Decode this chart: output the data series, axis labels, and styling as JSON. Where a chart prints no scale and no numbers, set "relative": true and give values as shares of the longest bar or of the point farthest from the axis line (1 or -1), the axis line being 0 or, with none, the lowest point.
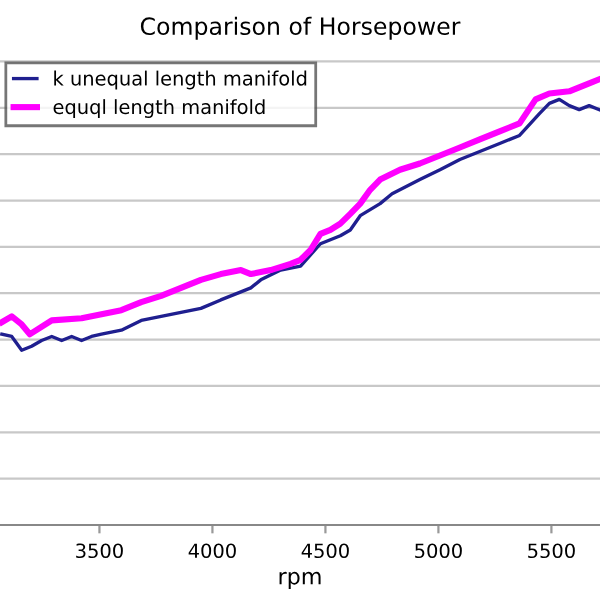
{
  "chart_data": {
    "type": "line",
    "title": "Comparison of Horsepower",
    "xlabel": "rpm",
    "relative": true,
    "xlim": [
      3060,
      5715
    ],
    "xticks": [
      3500,
      4000,
      4500,
      5000,
      5500
    ],
    "grid": "y",
    "legend": "top left",
    "series": [
      {
        "name": "k unequal length manifold",
        "color": "#1f1f8f",
        "x": [
          3068,
          3112,
          3156,
          3200,
          3244,
          3289,
          3333,
          3377,
          3421,
          3465,
          3509,
          3597,
          3685,
          3773,
          3861,
          3949,
          4037,
          4126,
          4170,
          4214,
          4302,
          4390,
          4478,
          4522,
          4566,
          4610,
          4654,
          4742,
          4795,
          4918,
          5007,
          5095,
          5183,
          5271,
          5359,
          5447,
          5491,
          5535,
          5579,
          5623,
          5667,
          5711
        ],
        "values": [
          0.428,
          0.423,
          0.392,
          0.401,
          0.414,
          0.423,
          0.414,
          0.423,
          0.414,
          0.423,
          0.428,
          0.437,
          0.459,
          0.468,
          0.477,
          0.486,
          0.505,
          0.523,
          0.532,
          0.55,
          0.572,
          0.581,
          0.631,
          0.64,
          0.649,
          0.662,
          0.694,
          0.721,
          0.743,
          0.775,
          0.797,
          0.82,
          0.838,
          0.856,
          0.874,
          0.923,
          0.946,
          0.955,
          0.941,
          0.932,
          0.941,
          0.932
        ]
      },
      {
        "name": "equql length manifold",
        "color": "#ff00ff",
        "x": [
          3068,
          3112,
          3156,
          3192,
          3289,
          3421,
          3509,
          3597,
          3685,
          3773,
          3861,
          3949,
          4037,
          4126,
          4170,
          4258,
          4346,
          4390,
          4434,
          4478,
          4522,
          4566,
          4610,
          4654,
          4698,
          4742,
          4830,
          4918,
          5007,
          5095,
          5183,
          5271,
          5359,
          5430,
          5491,
          5579,
          5623,
          5667,
          5711
        ],
        "values": [
          0.455,
          0.468,
          0.45,
          0.428,
          0.459,
          0.464,
          0.473,
          0.482,
          0.5,
          0.514,
          0.532,
          0.55,
          0.563,
          0.572,
          0.563,
          0.572,
          0.586,
          0.595,
          0.617,
          0.653,
          0.662,
          0.676,
          0.698,
          0.721,
          0.752,
          0.775,
          0.797,
          0.811,
          0.829,
          0.847,
          0.865,
          0.883,
          0.901,
          0.955,
          0.968,
          0.973,
          0.982,
          0.991,
          1.0
        ]
      }
    ]
  }
}
